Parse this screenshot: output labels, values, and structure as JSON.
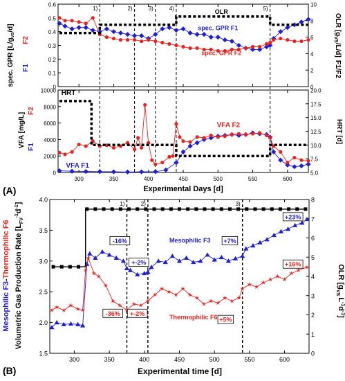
{
  "chart_data": [
    {
      "type": "line",
      "panel_label": "(A)",
      "subpanel": "top",
      "xlim": [
        270,
        630
      ],
      "xticks": [
        300,
        350,
        400,
        450,
        500,
        550,
        600
      ],
      "ylabel_left_parts": [
        "spec. GPR [L/g",
        "vs",
        "/d]",
        "F2",
        "F1"
      ],
      "ylim_left": [
        0.0,
        0.6
      ],
      "yticks_left": [
        "0",
        "0.1",
        "0.2",
        "0.3",
        "0.4",
        "0.5",
        "0.6"
      ],
      "ylabel_right": "OLR [g",
      "ylabel_right_sub": "VS",
      "ylabel_right_tail": "/L/d]",
      "ylabel_right_f": "F1/F2",
      "ylim_right": [
        0,
        10
      ],
      "yticks_right": [
        "0",
        "2",
        "4",
        "6",
        "8",
        "10"
      ],
      "phase_lines": [
        {
          "x": 330,
          "label": "1)"
        },
        {
          "x": 380,
          "label": "2)"
        },
        {
          "x": 410,
          "label": "3)"
        },
        {
          "x": 440,
          "label": "4)"
        },
        {
          "x": 575,
          "label": "5)"
        }
      ],
      "annotations": [
        {
          "text": "OLR",
          "x": 505,
          "y": 0.53,
          "color": "#000000"
        },
        {
          "text": "spec. GPR F1",
          "x": 500,
          "y": 0.41,
          "color": "#1f1fd0"
        },
        {
          "text": "spec. GPR F2",
          "x": 505,
          "y": 0.23,
          "color": "#e8231e"
        }
      ],
      "series": [
        {
          "name": "F1",
          "axis": "left",
          "color": "#1f1fd0",
          "marker": "diamond",
          "x": [
            272,
            280,
            290,
            300,
            310,
            320,
            330,
            340,
            350,
            360,
            370,
            380,
            390,
            400,
            410,
            420,
            430,
            440,
            450,
            460,
            470,
            480,
            490,
            500,
            510,
            520,
            530,
            540,
            550,
            560,
            570,
            575,
            580,
            590,
            600,
            610,
            620,
            630
          ],
          "y": [
            0.46,
            0.44,
            0.42,
            0.43,
            0.43,
            0.41,
            0.4,
            0.42,
            0.4,
            0.39,
            0.38,
            0.37,
            0.37,
            0.35,
            0.38,
            0.42,
            0.43,
            0.41,
            0.42,
            0.39,
            0.38,
            0.38,
            0.36,
            0.36,
            0.34,
            0.33,
            0.3,
            0.28,
            0.27,
            0.27,
            0.29,
            0.3,
            0.35,
            0.4,
            0.43,
            0.45,
            0.47,
            0.49
          ]
        },
        {
          "name": "F2",
          "axis": "left",
          "color": "#e8231e",
          "marker": "circle",
          "x": [
            272,
            280,
            290,
            300,
            310,
            320,
            330,
            340,
            350,
            360,
            370,
            380,
            390,
            400,
            410,
            420,
            430,
            440,
            450,
            460,
            470,
            480,
            490,
            500,
            510,
            520,
            530,
            540,
            550,
            560,
            570,
            575,
            580,
            590,
            600,
            610,
            620,
            630
          ],
          "y": [
            0.5,
            0.48,
            0.48,
            0.47,
            0.46,
            0.5,
            0.38,
            0.36,
            0.35,
            0.34,
            0.34,
            0.34,
            0.33,
            0.34,
            0.33,
            0.32,
            0.31,
            0.3,
            0.29,
            0.28,
            0.28,
            0.27,
            0.27,
            0.26,
            0.26,
            0.27,
            0.27,
            0.28,
            0.29,
            0.29,
            0.31,
            0.32,
            0.34,
            0.35,
            0.34,
            0.33,
            0.33,
            0.34
          ]
        },
        {
          "name": "OLR",
          "axis": "right",
          "color": "#000000",
          "marker": "square",
          "style": "dotted-step",
          "x": [
            272,
            330,
            330,
            440,
            440,
            575,
            575,
            630
          ],
          "y": [
            6.5,
            6.5,
            7.5,
            7.5,
            8.5,
            8.5,
            7.5,
            7.5
          ]
        }
      ]
    },
    {
      "type": "line",
      "panel_label": "(A)",
      "subpanel": "bottom",
      "xlabel": "Experimental Days [d]",
      "xlim": [
        270,
        630
      ],
      "xticks": [
        "300",
        "350",
        "400",
        "450",
        "500",
        "550",
        "600"
      ],
      "ylabel_left_parts": [
        "VFA [mg/L]",
        "F2",
        "F1"
      ],
      "ylim_left": [
        0,
        10000
      ],
      "yticks_left": [
        "0",
        "2000",
        "4000",
        "6000",
        "8000",
        "10000"
      ],
      "ylabel_right": "HRT [d]",
      "ylim_right": [
        5.0,
        20.0
      ],
      "yticks_right": [
        "5.0",
        "7.5",
        "10.0",
        "12.5",
        "15.0",
        "17.5",
        "20.0"
      ],
      "annotations": [
        {
          "text": "HRT",
          "x": 285,
          "y": 9400,
          "color": "#000000"
        },
        {
          "text": "VFA F2",
          "x": 515,
          "y": 5500,
          "color": "#e8231e"
        },
        {
          "text": "VFA F1",
          "x": 298,
          "y": 600,
          "color": "#1f1fd0"
        }
      ],
      "series": [
        {
          "name": "VFA F1",
          "axis": "left",
          "color": "#1f1fd0",
          "marker": "diamond",
          "x": [
            272,
            290,
            310,
            330,
            350,
            370,
            390,
            410,
            425,
            440,
            450,
            460,
            470,
            480,
            490,
            500,
            510,
            520,
            530,
            540,
            550,
            560,
            570,
            575,
            580,
            590,
            600,
            610,
            620,
            630
          ],
          "y": [
            200,
            150,
            120,
            100,
            80,
            60,
            80,
            100,
            300,
            1200,
            2500,
            3200,
            3600,
            4000,
            4200,
            4400,
            4500,
            4600,
            4500,
            4600,
            4800,
            4700,
            4600,
            4300,
            2500,
            1500,
            900,
            700,
            800,
            1000
          ]
        },
        {
          "name": "VFA F2",
          "axis": "left",
          "color": "#e8231e",
          "marker": "circle",
          "x": [
            272,
            280,
            290,
            300,
            310,
            320,
            330,
            340,
            350,
            360,
            370,
            380,
            385,
            390,
            395,
            400,
            405,
            410,
            420,
            430,
            435,
            440,
            445,
            450,
            460,
            470,
            480,
            490,
            500,
            510,
            520,
            530,
            540,
            550,
            560,
            570,
            575,
            580,
            590,
            600,
            610,
            620,
            630
          ],
          "y": [
            2400,
            2200,
            2500,
            3400,
            3200,
            3800,
            3200,
            3300,
            3000,
            3200,
            3600,
            2800,
            4200,
            3000,
            8200,
            3600,
            1500,
            1000,
            1200,
            1900,
            2000,
            5900,
            4300,
            3800,
            3700,
            4300,
            4200,
            4500,
            4300,
            4400,
            4600,
            4700,
            4600,
            4700,
            4800,
            4500,
            4200,
            3200,
            2500,
            1200,
            1800,
            1500,
            1400
          ]
        },
        {
          "name": "HRT",
          "axis": "right",
          "color": "#000000",
          "marker": "square",
          "style": "dotted-step",
          "x": [
            272,
            318,
            318,
            330,
            330,
            440,
            440,
            575,
            575,
            630
          ],
          "y": [
            18.0,
            18.0,
            10.0,
            10.0,
            10.0,
            10.0,
            8.0,
            8.0,
            10.0,
            10.0
          ]
        }
      ]
    },
    {
      "type": "line",
      "panel_label": "(B)",
      "xlabel": "Experimental time [d]",
      "xlim": [
        265,
        635
      ],
      "xticks": [
        "300",
        "350",
        "400",
        "450",
        "500",
        "550",
        "600"
      ],
      "ylabel_left_parts": [
        "Volumetric Gas Production Rate [L",
        "FV",
        "-1",
        "d",
        "-1",
        "]",
        "Mesophilic F3",
        "-",
        "Thermophilic F6"
      ],
      "ylim_left": [
        1.5,
        4.0
      ],
      "yticks_left": [
        "1.5",
        "2.0",
        "2.5",
        "3.0",
        "3.5",
        "4.0"
      ],
      "ylabel_right_parts": [
        "OLR [g",
        "VS",
        "L",
        "-1",
        "d",
        "-1",
        "]"
      ],
      "ylim_right": [
        0,
        8
      ],
      "yticks_right": [
        "0",
        "1",
        "2",
        "3",
        "4",
        "5",
        "6",
        "7",
        "8"
      ],
      "phase_lines": [
        {
          "x": 375,
          "label": "1)"
        },
        {
          "x": 405,
          "label": "2)"
        },
        {
          "x": 540,
          "label": "3)"
        }
      ],
      "boxed_labels": [
        {
          "text": "-16%",
          "x": 365,
          "y": 3.33,
          "color": "#1f1fd0"
        },
        {
          "text": "+-2%",
          "x": 392,
          "y": 2.98,
          "color": "#1f1fd0"
        },
        {
          "text": "+7%",
          "x": 522,
          "y": 3.33,
          "color": "#1f1fd0"
        },
        {
          "text": "+23%",
          "x": 612,
          "y": 3.72,
          "color": "#1f1fd0"
        },
        {
          "text": "-36%",
          "x": 355,
          "y": 2.15,
          "color": "#e8231e"
        },
        {
          "text": "+-2%",
          "x": 390,
          "y": 2.15,
          "color": "#e8231e"
        },
        {
          "text": "+5%",
          "x": 516,
          "y": 2.05,
          "color": "#e8231e"
        },
        {
          "text": "+16%",
          "x": 612,
          "y": 2.95,
          "color": "#e8231e"
        }
      ],
      "annotations": [
        {
          "text": "Mesophilic F3",
          "x": 465,
          "y": 3.3,
          "color": "#1f1fd0"
        },
        {
          "text": "Thermophilic F6",
          "x": 470,
          "y": 2.05,
          "color": "#e8231e"
        }
      ],
      "series": [
        {
          "name": "Mesophilic F3",
          "axis": "left",
          "color": "#1f1fd0",
          "marker": "triangle",
          "x": [
            268,
            275,
            285,
            295,
            305,
            312,
            318,
            322,
            330,
            340,
            350,
            360,
            370,
            375,
            380,
            390,
            400,
            405,
            410,
            420,
            430,
            440,
            450,
            460,
            470,
            480,
            490,
            500,
            510,
            520,
            530,
            540,
            545,
            555,
            565,
            575,
            585,
            595,
            605,
            615,
            625,
            632
          ],
          "y": [
            1.92,
            2.0,
            1.97,
            1.98,
            1.97,
            1.95,
            2.95,
            3.12,
            3.05,
            3.15,
            3.1,
            3.05,
            3.0,
            2.88,
            2.85,
            2.78,
            2.8,
            2.82,
            2.9,
            3.0,
            2.98,
            3.08,
            3.0,
            3.05,
            2.98,
            3.0,
            3.1,
            3.02,
            3.06,
            3.0,
            3.04,
            3.08,
            3.2,
            3.25,
            3.3,
            3.35,
            3.42,
            3.48,
            3.52,
            3.58,
            3.62,
            3.68
          ]
        },
        {
          "name": "Thermophilic F6",
          "axis": "left",
          "color": "#e8231e",
          "marker": "star",
          "x": [
            268,
            275,
            285,
            295,
            305,
            312,
            316,
            320,
            328,
            335,
            345,
            355,
            365,
            375,
            385,
            395,
            405,
            415,
            425,
            435,
            445,
            455,
            465,
            475,
            485,
            495,
            505,
            515,
            525,
            535,
            540,
            550,
            560,
            570,
            580,
            590,
            600,
            610,
            620,
            632
          ],
          "y": [
            2.2,
            2.25,
            2.2,
            2.28,
            2.22,
            2.2,
            2.85,
            3.05,
            2.8,
            2.75,
            2.6,
            2.35,
            2.28,
            2.2,
            2.3,
            2.28,
            2.35,
            2.45,
            2.55,
            2.5,
            2.45,
            2.55,
            2.45,
            2.4,
            2.3,
            2.35,
            2.32,
            2.4,
            2.35,
            2.4,
            2.55,
            2.62,
            2.58,
            2.65,
            2.7,
            2.75,
            2.7,
            2.8,
            2.85,
            2.9
          ]
        },
        {
          "name": "OLR",
          "axis": "right",
          "color": "#000000",
          "marker": "square",
          "style": "step",
          "x": [
            268,
            316,
            316,
            632
          ],
          "y": [
            4.5,
            4.5,
            7.5,
            7.5
          ]
        }
      ]
    }
  ],
  "panel_labels": [
    "(A)",
    "(B)"
  ]
}
